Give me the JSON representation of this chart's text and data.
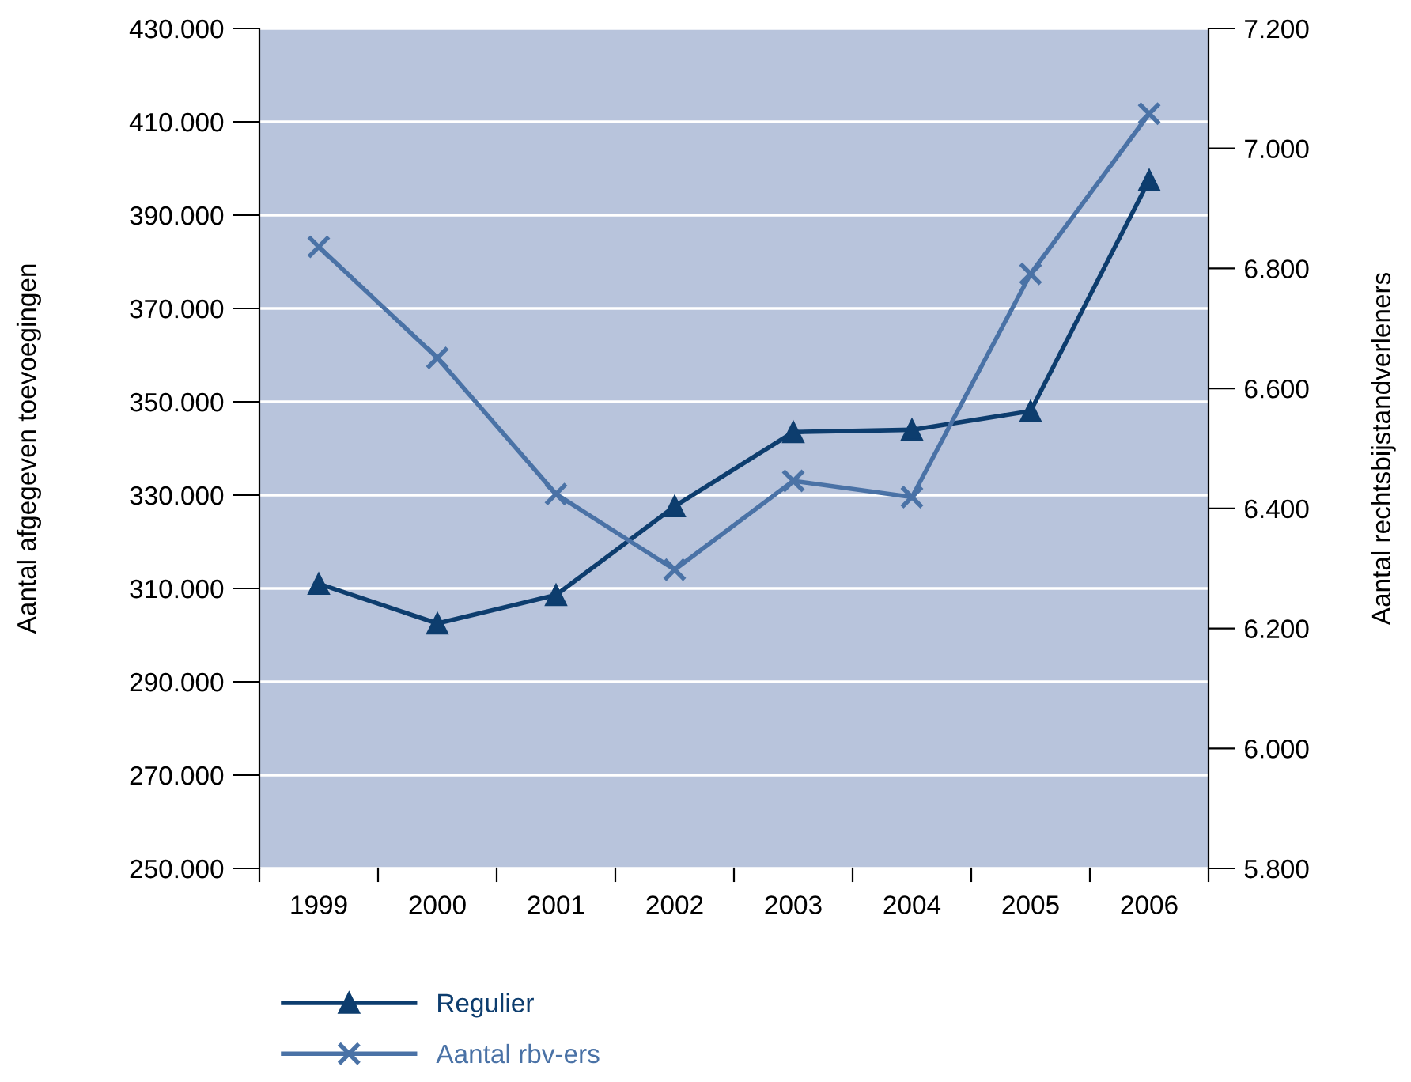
{
  "chart_data": {
    "type": "line",
    "categories": [
      "1999",
      "2000",
      "2001",
      "2002",
      "2003",
      "2004",
      "2005",
      "2006"
    ],
    "ylabel": "Aantal afgegeven toevoegingen",
    "y2label": "Aantal rechtsbijstandverleners",
    "series": [
      {
        "name": "Regulier",
        "color": "#0d3d6e",
        "marker": "triangle",
        "values": [
          311000,
          302500,
          308600,
          327600,
          343500,
          344000,
          348000,
          397500
        ]
      },
      {
        "name": "Aantal rbv-ers",
        "color": "#4a72a6",
        "marker": "cross",
        "axis": "y2",
        "values": [
          6836,
          6651,
          6424,
          6298,
          6446,
          6419,
          6791,
          7058
        ]
      }
    ],
    "ylim": [
      250000,
      430000
    ],
    "yticks": [
      {
        "value": 250000,
        "label": "250.000"
      },
      {
        "value": 270000,
        "label": "270.000"
      },
      {
        "value": 290000,
        "label": "290.000"
      },
      {
        "value": 310000,
        "label": "310.000"
      },
      {
        "value": 330000,
        "label": "330.000"
      },
      {
        "value": 350000,
        "label": "350.000"
      },
      {
        "value": 370000,
        "label": "370.000"
      },
      {
        "value": 390000,
        "label": "390.000"
      },
      {
        "value": 410000,
        "label": "410.000"
      },
      {
        "value": 430000,
        "label": "430.000"
      }
    ],
    "y2lim": [
      5800,
      7200
    ],
    "y2ticks": [
      {
        "value": 5800,
        "label": "5.800"
      },
      {
        "value": 6000,
        "label": "6.000"
      },
      {
        "value": 6200,
        "label": "6.200"
      },
      {
        "value": 6400,
        "label": "6.400"
      },
      {
        "value": 6600,
        "label": "6.600"
      },
      {
        "value": 6800,
        "label": "6.800"
      },
      {
        "value": 7000,
        "label": "7.000"
      },
      {
        "value": 7200,
        "label": "7.200"
      }
    ],
    "grid": "y",
    "legend": "bottom left",
    "line_style": "solid"
  }
}
